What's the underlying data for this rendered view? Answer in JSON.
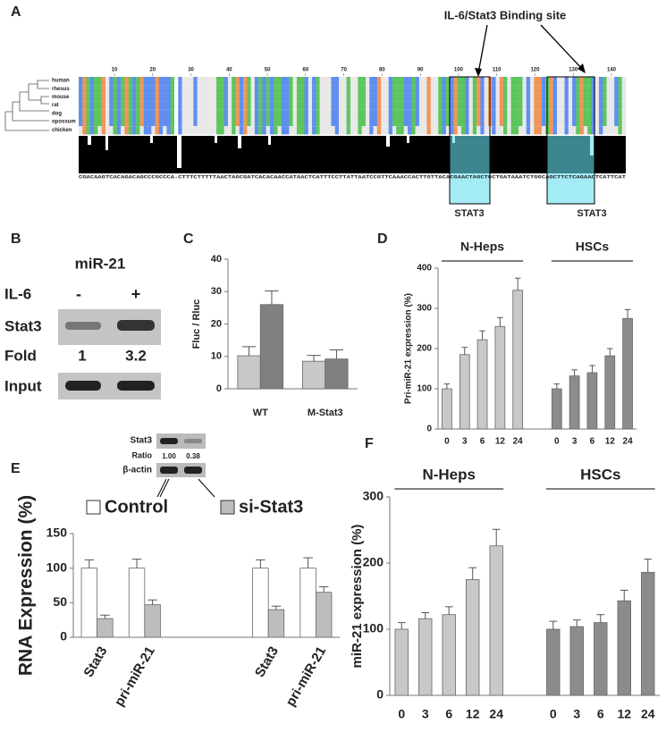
{
  "panel_a": {
    "label": "A",
    "title": "IL-6/Stat3 Binding site",
    "species": [
      "human",
      "rhesus",
      "mouse",
      "rat",
      "dog",
      "opossum",
      "chicken"
    ],
    "positions": [
      10,
      20,
      30,
      40,
      50,
      60,
      70,
      80,
      90,
      100,
      110,
      120,
      130,
      140
    ],
    "consensus": "CGACAAGTCACAGACAGCCCGCCCA-CTTTCTTTTTAACTAGCGATCACACAACCATAACTCATTTCCTTATTAATCCGTTCAAACCACTTGTTACACGAACTAGCTGCTGATAAATCTGGCAGCTTCTCAGAACTCATTCAT",
    "sites": [
      "STAT3",
      "STAT3"
    ]
  },
  "panel_b": {
    "label": "B",
    "title": "miR-21",
    "treatment": "IL-6",
    "conditions": [
      "-",
      "+"
    ],
    "rows": [
      "Stat3",
      "Fold",
      "Input"
    ],
    "fold": [
      1,
      3.2
    ]
  },
  "panel_e_inset": {
    "rows": [
      "Stat3",
      "Ratio",
      "β-actin"
    ],
    "ratios": [
      "1.00",
      "0.38"
    ]
  },
  "chart_data": [
    {
      "type": "bar",
      "panel": "C",
      "y_label": "Fluc / Rluc",
      "categories": [
        "WT",
        "M-Stat3"
      ],
      "series": [
        {
          "color": "#c8c8c8",
          "values": [
            10.2,
            8.5
          ],
          "errors": [
            2.8,
            1.8
          ]
        },
        {
          "color": "#808080",
          "values": [
            26,
            9.2
          ],
          "errors": [
            4.2,
            2.8
          ]
        }
      ],
      "ylim": [
        0,
        40
      ],
      "yticks": [
        0,
        10,
        20,
        30,
        40
      ]
    },
    {
      "type": "bar",
      "panel": "D",
      "y_label": "Pri-miR-21 expression (%)",
      "categories": [
        "0",
        "3",
        "6",
        "12",
        "24",
        "0",
        "3",
        "6",
        "12",
        "24"
      ],
      "groups": [
        "N-Heps",
        "HSCs"
      ],
      "values": [
        100,
        185,
        222,
        255,
        345,
        100,
        132,
        140,
        182,
        275
      ],
      "errors": [
        12,
        18,
        22,
        22,
        30,
        12,
        15,
        18,
        18,
        22
      ],
      "colors": [
        "#c8c8c8",
        "#c8c8c8",
        "#c8c8c8",
        "#c8c8c8",
        "#c8c8c8",
        "#8c8c8c",
        "#8c8c8c",
        "#8c8c8c",
        "#8c8c8c",
        "#8c8c8c"
      ],
      "ylim": [
        0,
        400
      ],
      "yticks": [
        0,
        100,
        200,
        300,
        400
      ]
    },
    {
      "type": "bar",
      "panel": "E",
      "y_label": "RNA Expression (%)",
      "categories": [
        "Stat3",
        "pri-miR-21",
        "Stat3",
        "pri-miR-21"
      ],
      "series": [
        {
          "name": "Control",
          "color": "#ffffff",
          "values": [
            100,
            100,
            100,
            100
          ],
          "errors": [
            12,
            13,
            12,
            15
          ]
        },
        {
          "name": "si-Stat3",
          "color": "#bdbdbd",
          "values": [
            27,
            47,
            40,
            65
          ],
          "errors": [
            5,
            7,
            5,
            8
          ]
        }
      ],
      "ylim": [
        0,
        150
      ],
      "yticks": [
        0,
        50,
        100,
        150
      ]
    },
    {
      "type": "bar",
      "panel": "F",
      "y_label": "miR-21 expression (%)",
      "categories": [
        "0",
        "3",
        "6",
        "12",
        "24",
        "0",
        "3",
        "6",
        "12",
        "24"
      ],
      "groups": [
        "N-Heps",
        "HSCs"
      ],
      "values": [
        100,
        116,
        122,
        175,
        226,
        100,
        104,
        110,
        143,
        186
      ],
      "errors": [
        10,
        9,
        12,
        18,
        25,
        12,
        10,
        12,
        16,
        20
      ],
      "colors": [
        "#c8c8c8",
        "#c8c8c8",
        "#c8c8c8",
        "#c8c8c8",
        "#c8c8c8",
        "#8c8c8c",
        "#8c8c8c",
        "#8c8c8c",
        "#8c8c8c",
        "#8c8c8c"
      ],
      "ylim": [
        0,
        300
      ],
      "yticks": [
        0,
        100,
        200,
        300
      ]
    }
  ]
}
